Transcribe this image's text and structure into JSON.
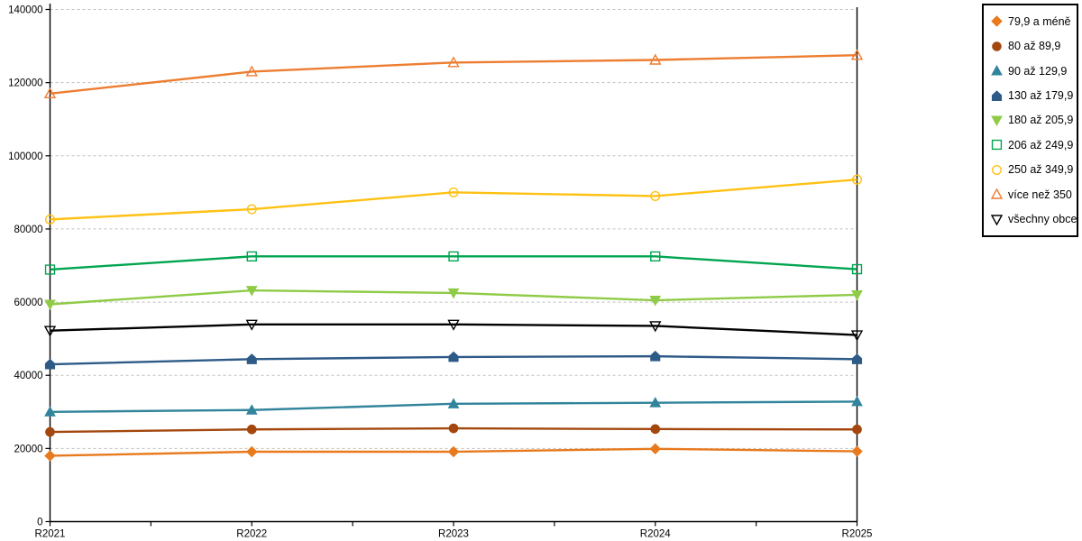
{
  "chart_data": {
    "type": "line",
    "title": "",
    "xlabel": "",
    "ylabel": "",
    "categories": [
      "R2021",
      "R2022",
      "R2023",
      "R2024",
      "R2025"
    ],
    "series": [
      {
        "name": "79,9 a méně",
        "color": "#E8791D",
        "marker": "diamond",
        "filled": true,
        "values": [
          18000,
          19100,
          19100,
          19900,
          19200
        ]
      },
      {
        "name": "80 až 89,9",
        "color": "#A3470E",
        "marker": "circle",
        "filled": true,
        "values": [
          24500,
          25200,
          25500,
          25300,
          25200
        ]
      },
      {
        "name": "90 až 129,9",
        "color": "#31849B",
        "marker": "triangle",
        "filled": true,
        "values": [
          30000,
          30500,
          32200,
          32500,
          32800
        ]
      },
      {
        "name": "130 až 179,9",
        "color": "#2E5A88",
        "marker": "pentagon",
        "filled": true,
        "values": [
          43000,
          44400,
          45000,
          45200,
          44400
        ]
      },
      {
        "name": "180 až 205,9",
        "color": "#8FCB47",
        "marker": "tridown",
        "filled": true,
        "values": [
          59400,
          63200,
          62500,
          60500,
          62000
        ]
      },
      {
        "name": "206 až 249,9",
        "color": "#00A550",
        "marker": "square",
        "filled": false,
        "values": [
          68900,
          72500,
          72500,
          72500,
          69000
        ]
      },
      {
        "name": "250 až 349,9",
        "color": "#FFC113",
        "marker": "circle",
        "filled": false,
        "values": [
          82600,
          85400,
          90000,
          89000,
          93500
        ]
      },
      {
        "name": "více než 350",
        "color": "#ED7D31",
        "marker": "triangle",
        "filled": false,
        "values": [
          117000,
          123000,
          125500,
          126200,
          127500
        ]
      },
      {
        "name": "všechny obce",
        "color": "#000000",
        "marker": "tridown",
        "filled": false,
        "values": [
          52200,
          53900,
          53900,
          53500,
          51000
        ]
      }
    ],
    "ylim": [
      0,
      140000
    ],
    "ytick_step": 20000,
    "y_tick_labels": [
      "0",
      "20000",
      "40000",
      "60000",
      "80000",
      "100000",
      "120000",
      "140000"
    ],
    "grid": "horizontal-dashed",
    "gridline_color": "#BFBFBF",
    "axis_color": "#000000",
    "legend_position": "right-outside"
  },
  "legend": {
    "border_color": "#000000",
    "items": [
      "79,9 a méně",
      "80 až 89,9",
      "90 až 129,9",
      "130 až 179,9",
      "180 až 205,9",
      "206 až 249,9",
      "250 až 349,9",
      "více než 350",
      "všechny obce"
    ]
  }
}
